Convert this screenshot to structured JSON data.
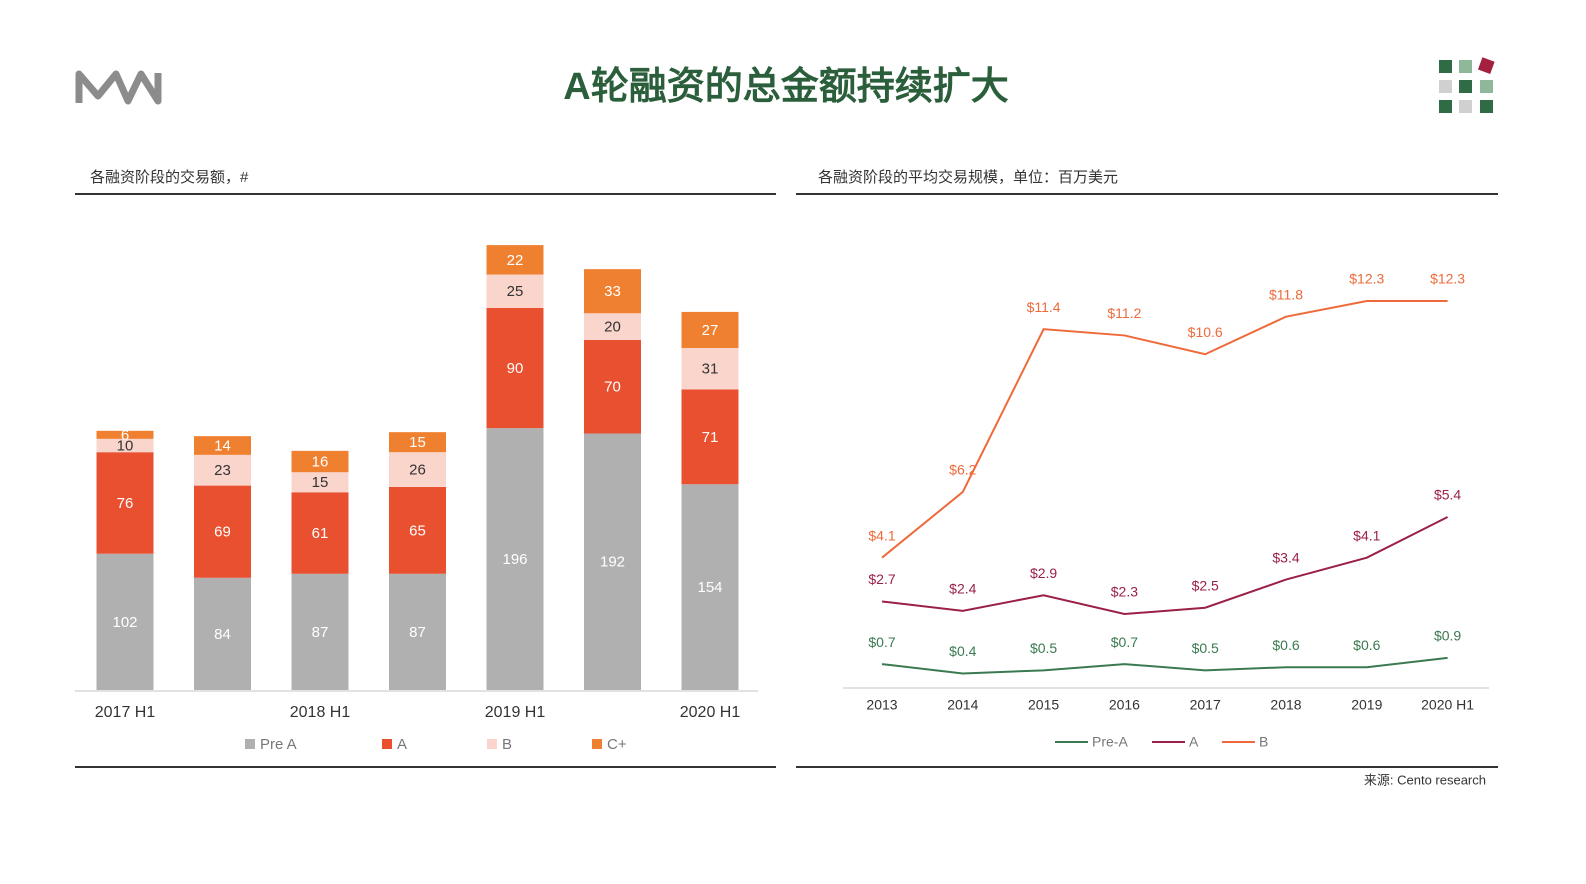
{
  "title": "A轮融资的总金额持续扩大",
  "source": "来源: Cento research",
  "chart_data": [
    {
      "type": "bar",
      "stacked": true,
      "subtitle": "各融资阶段的交易额，#",
      "categories": [
        "2017 H1",
        null,
        "2018 H1",
        null,
        "2019 H1",
        null,
        "2020 H1"
      ],
      "series": [
        {
          "name": "Pre A",
          "color": "#b0b0b0",
          "values": [
            102,
            84,
            87,
            87,
            196,
            192,
            154
          ]
        },
        {
          "name": "A",
          "color": "#e8502f",
          "values": [
            76,
            69,
            61,
            65,
            90,
            70,
            71
          ]
        },
        {
          "name": "B",
          "color": "#f9d5cc",
          "values": [
            10,
            23,
            15,
            26,
            25,
            20,
            31
          ]
        },
        {
          "name": "C+",
          "color": "#ef8030",
          "values": [
            6,
            14,
            16,
            15,
            22,
            33,
            27
          ]
        }
      ]
    },
    {
      "type": "line",
      "subtitle": "各融资阶段的平均交易规模，单位：百万美元",
      "categories": [
        "2013",
        "2014",
        "2015",
        "2016",
        "2017",
        "2018",
        "2019",
        "2020 H1"
      ],
      "series": [
        {
          "name": "Pre-A",
          "color": "#3a7a50",
          "values": [
            0.7,
            0.4,
            0.5,
            0.7,
            0.5,
            0.6,
            0.6,
            0.9
          ],
          "value_labels": [
            "$0.7",
            "$0.4",
            "$0.5",
            "$0.7",
            "$0.5",
            "$0.6",
            "$0.6",
            "$0.9"
          ]
        },
        {
          "name": "A",
          "color": "#9b2045",
          "values": [
            2.7,
            2.4,
            2.9,
            2.3,
            2.5,
            3.4,
            4.1,
            5.4
          ],
          "value_labels": [
            "$2.7",
            "$2.4",
            "$2.9",
            "$2.3",
            "$2.5",
            "$3.4",
            "$4.1",
            "$5.4"
          ]
        },
        {
          "name": "B",
          "color": "#ee6a3a",
          "values": [
            4.1,
            6.2,
            11.4,
            11.2,
            10.6,
            11.8,
            12.3,
            12.3
          ],
          "value_labels": [
            "$4.1",
            "$6.2",
            "$11.4",
            "$11.2",
            "$10.6",
            "$11.8",
            "$12.3",
            "$12.3"
          ]
        }
      ]
    }
  ]
}
